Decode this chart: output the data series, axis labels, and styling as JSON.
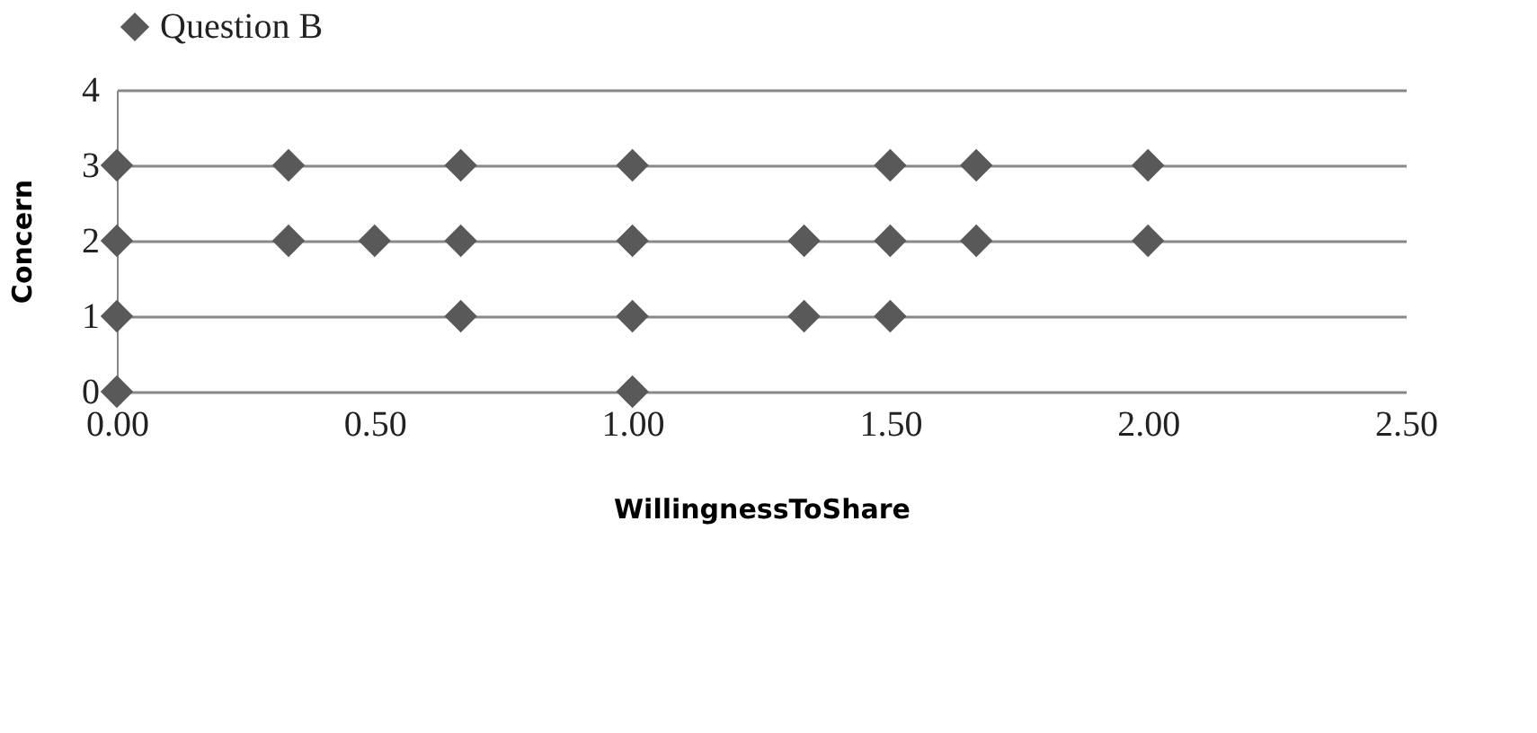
{
  "chart_data": {
    "type": "scatter",
    "xlabel": "WillingnessToShare",
    "ylabel": "Concern",
    "series": [
      {
        "name": "Question B",
        "color": "#595959",
        "x": [
          0,
          0.333,
          0.667,
          1.0,
          1.5,
          1.667,
          2.0,
          0,
          0.333,
          0.5,
          0.667,
          1.0,
          1.333,
          1.5,
          1.667,
          2.0,
          0,
          0.667,
          1.0,
          1.333,
          1.5,
          0,
          1.0
        ],
        "values": [
          3,
          3,
          3,
          3,
          3,
          3,
          3,
          2,
          2,
          2,
          2,
          2,
          2,
          2,
          2,
          2,
          1,
          1,
          1,
          1,
          1,
          0,
          0
        ]
      }
    ],
    "xlim": [
      0,
      2.5
    ],
    "xticks": [
      {
        "value": 0,
        "label": "0.00"
      },
      {
        "value": 0.5,
        "label": "0.50"
      },
      {
        "value": 1,
        "label": "1.00"
      },
      {
        "value": 1.5,
        "label": "1.50"
      },
      {
        "value": 2,
        "label": "2.00"
      },
      {
        "value": 2.5,
        "label": "2.50"
      }
    ],
    "ylim": [
      0,
      4
    ],
    "yticks": [
      0,
      1,
      2,
      3,
      4
    ],
    "grid": "y",
    "legend": "top",
    "marker": "diamond"
  }
}
